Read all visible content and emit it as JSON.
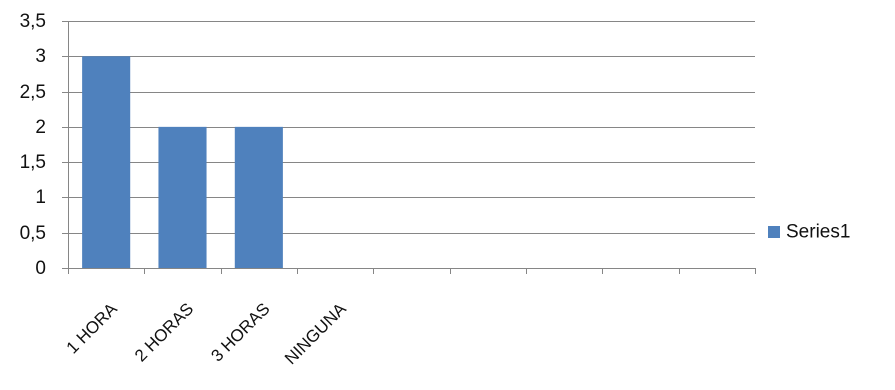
{
  "chart_data": {
    "type": "bar",
    "title": "",
    "xlabel": "",
    "ylabel": "",
    "categories": [
      "1 HORA",
      "2 HORAS",
      "3 HORAS",
      "NINGUNA"
    ],
    "series": [
      {
        "name": "Series1",
        "values": [
          3,
          2,
          2,
          0
        ],
        "color": "#4f81bd"
      }
    ],
    "ylim": [
      0,
      3.5
    ],
    "yticks": [
      0,
      0.5,
      1,
      1.5,
      2,
      2.5,
      3,
      3.5
    ],
    "ytick_labels": [
      "0",
      "0,5",
      "1",
      "1,5",
      "2",
      "2,5",
      "3",
      "3,5"
    ],
    "grid": true,
    "gridline_color": "#868686",
    "legend": "right"
  }
}
